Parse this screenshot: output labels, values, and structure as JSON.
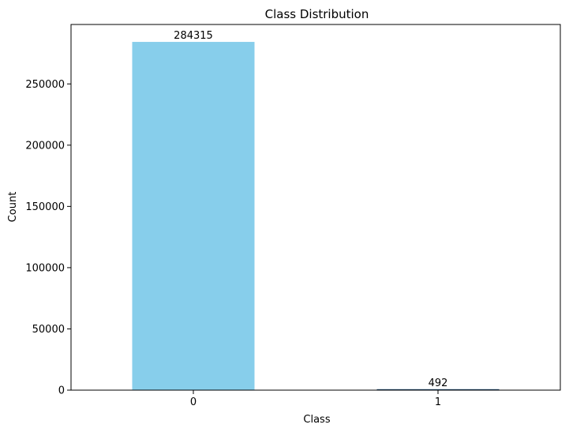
{
  "chart_data": {
    "type": "bar",
    "title": "Class Distribution",
    "xlabel": "Class",
    "ylabel": "Count",
    "categories": [
      "0",
      "1"
    ],
    "values": [
      284315,
      492
    ],
    "data_labels": [
      "284315",
      "492"
    ],
    "ylim": [
      0,
      298526
    ],
    "yticks": [
      0,
      50000,
      100000,
      150000,
      200000,
      250000
    ],
    "ytick_labels": [
      "0",
      "50000",
      "100000",
      "150000",
      "200000",
      "250000"
    ],
    "grid": false,
    "legend": "none",
    "colors": {
      "bar_0": "#87ceeb",
      "bar_1": "#1f4e79"
    }
  }
}
